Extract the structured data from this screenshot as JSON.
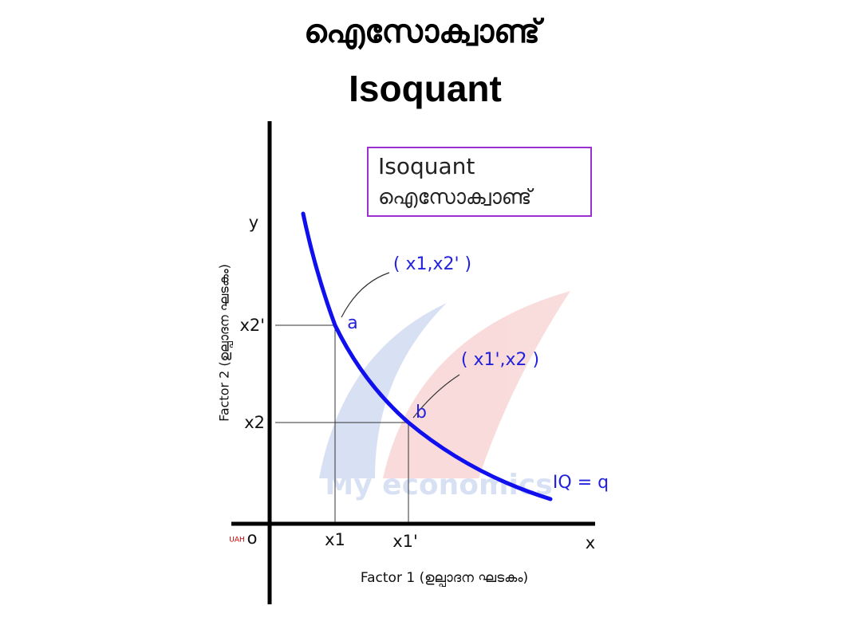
{
  "header": {
    "title_ml": "ഐസോക്വാണ്ട്",
    "title_en": "Isoquant"
  },
  "legend": {
    "line1": "Isoquant",
    "line2": "ഐസോക്വാണ്ട്"
  },
  "axes": {
    "y_letter": "y",
    "x_letter": "x",
    "origin": "o",
    "origin_note": "UAH",
    "y_title": "Factor 2 (ഉല്പാദന ഘടകം)",
    "x_title": "Factor 1 (ഉല്പാദന ഘടകം)",
    "y_ticks": [
      "x2'",
      "x2"
    ],
    "x_ticks": [
      "x1",
      "x1'"
    ]
  },
  "points": [
    {
      "label": "a",
      "coords": "( x1,x2' )"
    },
    {
      "label": "b",
      "coords": "( x1',x2 )"
    }
  ],
  "curve_label": "IQ = q",
  "watermark": "My economics"
}
